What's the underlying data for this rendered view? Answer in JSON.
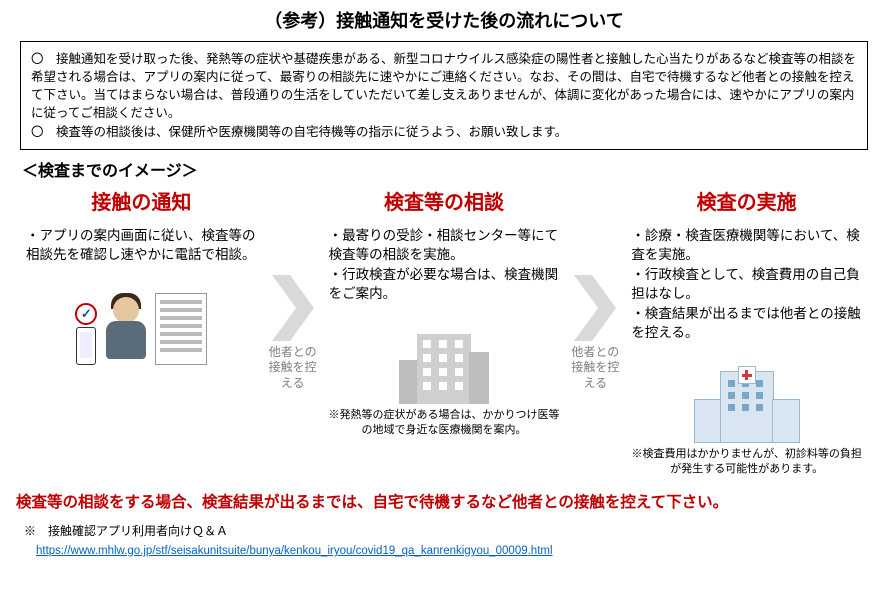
{
  "title": "（参考）接触通知を受けた後の流れについて",
  "intro": {
    "p1": "〇　接触通知を受け取った後、発熱等の症状や基礎疾患がある、新型コロナウイルス感染症の陽性者と接触した心当たりがあるなど検査等の相談を希望される場合は、アプリの案内に従って、最寄りの相談先に速やかにご連絡ください。なお、その間は、自宅で待機するなど他者との接触を控えて下さい。当てはまらない場合は、普段通りの生活をしていただいて差し支えありませんが、体調に変化があった場合には、速やかにアプリの案内に従ってご相談ください。",
    "p2": "〇　検査等の相談後は、保健所や医療機関等の自宅待機等の指示に従うよう、お願い致します。"
  },
  "section_heading": "＜検査までのイメージ＞",
  "arrow": {
    "label": "他者との\n接触を控える",
    "fill": "#d9d9d9"
  },
  "steps": [
    {
      "title": "接触の通知",
      "body": "・アプリの案内画面に従い、検査等の相談先を確認し速やかに電話で相談。",
      "note": ""
    },
    {
      "title": "検査等の相談",
      "body": "・最寄りの受診・相談センター等にて検査等の相談を実施。\n・行政検査が必要な場合は、検査機関をご案内。",
      "note": "※発熱等の症状がある場合は、かかりつけ医等の地域で身近な医療機関を案内。"
    },
    {
      "title": "検査の実施",
      "body": "・診療・検査医療機関等において、検査を実施。\n・行政検査として、検査費用の自己負担はなし。\n・検査結果が出るまでは他者との接触を控える。",
      "note": "※検査費用はかかりませんが、初診料等の負担が発生する可能性があります。"
    }
  ],
  "warning": "検査等の相談をする場合、検査結果が出るまでは、自宅で待機するなど他者との接触を控えて下さい。",
  "qa_label": "※　接触確認アプリ利用者向けＱ＆Ａ",
  "qa_url": "https://www.mhlw.go.jp/stf/seisakunitsuite/bunya/kenkou_iryou/covid19_qa_kanrenkigyou_00009.html",
  "colors": {
    "accent": "#c00000",
    "link": "#0563c1",
    "grey": "#7f7f7f",
    "arrow_fill": "#d9d9d9"
  }
}
